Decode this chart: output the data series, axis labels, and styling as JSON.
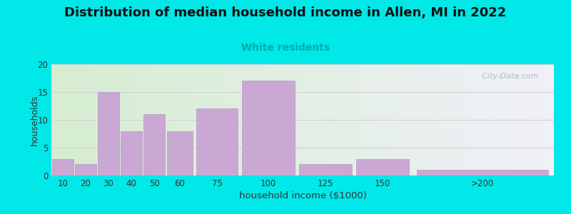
{
  "title": "Distribution of median household income in Allen, MI in 2022",
  "subtitle": "White residents",
  "xlabel": "household income ($1000)",
  "ylabel": "households",
  "bin_edges": [
    5,
    15,
    25,
    35,
    45,
    55,
    67.5,
    87.5,
    112.5,
    137.5,
    162.5,
    225
  ],
  "bin_labels": [
    "10",
    "20",
    "30",
    "40",
    "50",
    "60",
    "75",
    "100",
    "125",
    "150",
    ">200"
  ],
  "values": [
    3,
    2,
    15,
    8,
    11,
    8,
    12,
    17,
    2,
    3,
    1
  ],
  "bar_color": "#c9a8d4",
  "bar_edge_color": "#b898c8",
  "background_color": "#00e8e8",
  "plot_bg_left": "#d5edd0",
  "plot_bg_right": "#f0f0f8",
  "title_fontsize": 13,
  "title_color": "#111111",
  "subtitle_color": "#00aaaa",
  "subtitle_fontsize": 10,
  "ylabel_color": "#333333",
  "xlabel_color": "#333333",
  "tick_color": "#333333",
  "ylim": [
    0,
    20
  ],
  "yticks": [
    0,
    5,
    10,
    15,
    20
  ],
  "grid_color": "#d0d0d0",
  "watermark": "  City-Data.com",
  "watermark_color": "#b0b0b0"
}
